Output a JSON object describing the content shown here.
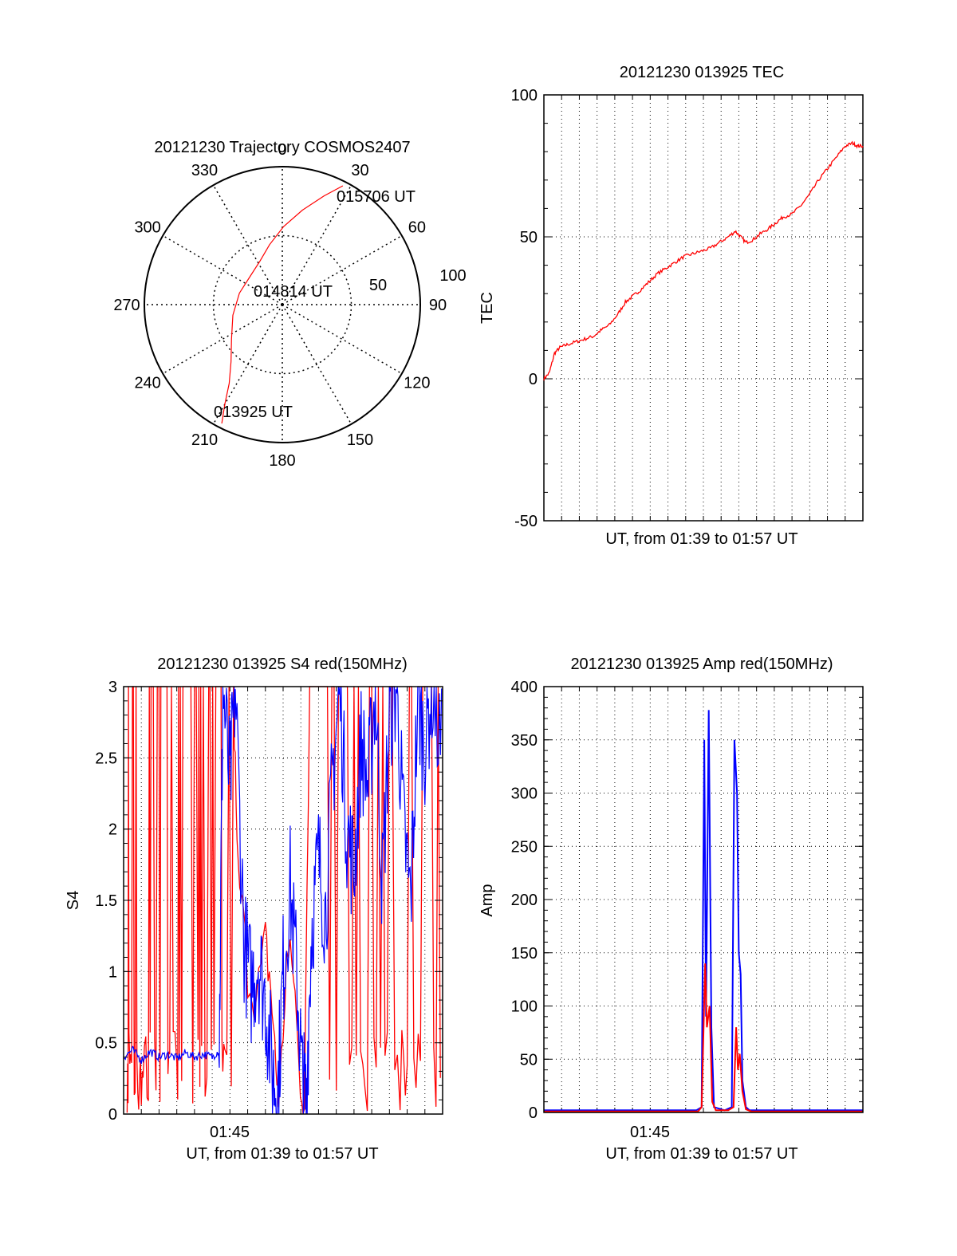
{
  "colors": {
    "red": "#ff0000",
    "blue": "#0000ff",
    "black": "#000000"
  },
  "chart_data": [
    {
      "type": "polar",
      "title": "20121230 Trajectory COSMOS2407",
      "angle_labels": [
        "0",
        "30",
        "60",
        "90",
        "120",
        "150",
        "180",
        "210",
        "240",
        "270",
        "300",
        "330"
      ],
      "radial_labels": [
        "50",
        "100"
      ],
      "track_labels": {
        "end": "015706 UT",
        "mid": "014814 UT",
        "start": "013925 UT"
      },
      "track": [
        {
          "az": 207,
          "el": 3
        },
        {
          "az": 210,
          "el": 15
        },
        {
          "az": 214,
          "el": 28
        },
        {
          "az": 222,
          "el": 40
        },
        {
          "az": 236,
          "el": 50
        },
        {
          "az": 258,
          "el": 57
        },
        {
          "az": 285,
          "el": 61
        },
        {
          "az": 312,
          "el": 62
        },
        {
          "az": 333,
          "el": 58
        },
        {
          "az": 348,
          "el": 50
        },
        {
          "az": 1,
          "el": 39
        },
        {
          "az": 12,
          "el": 27
        },
        {
          "az": 21,
          "el": 14
        },
        {
          "az": 27,
          "el": 3
        }
      ],
      "grid": true
    },
    {
      "type": "line",
      "title": "20121230 013925 TEC",
      "xlabel": "UT, from 01:39 to 01:57 UT",
      "ylabel": "TEC",
      "ylim": [
        -50,
        100
      ],
      "yticks": [
        "100",
        "50",
        "0",
        "-50"
      ],
      "grid": true,
      "series": [
        {
          "color": "red",
          "points": [
            [
              0,
              0
            ],
            [
              0.3,
              2
            ],
            [
              0.6,
              9
            ],
            [
              0.9,
              11
            ],
            [
              1.3,
              12
            ],
            [
              1.8,
              13
            ],
            [
              2.3,
              14
            ],
            [
              2.8,
              15
            ],
            [
              3.2,
              17
            ],
            [
              3.7,
              19
            ],
            [
              4.2,
              23
            ],
            [
              4.6,
              27
            ],
            [
              5.0,
              29
            ],
            [
              5.4,
              31
            ],
            [
              5.9,
              34
            ],
            [
              6.4,
              37
            ],
            [
              6.9,
              39
            ],
            [
              7.4,
              41
            ],
            [
              7.9,
              43
            ],
            [
              8.4,
              44
            ],
            [
              8.9,
              45
            ],
            [
              9.4,
              46
            ],
            [
              9.9,
              48
            ],
            [
              10.4,
              50
            ],
            [
              10.8,
              52
            ],
            [
              11.1,
              50
            ],
            [
              11.4,
              48
            ],
            [
              11.8,
              49
            ],
            [
              12.2,
              51
            ],
            [
              12.7,
              53
            ],
            [
              13.1,
              55
            ],
            [
              13.5,
              57
            ],
            [
              14.0,
              58
            ],
            [
              14.5,
              61
            ],
            [
              15.0,
              65
            ],
            [
              15.5,
              70
            ],
            [
              16.0,
              74
            ],
            [
              16.5,
              78
            ],
            [
              17.0,
              82
            ],
            [
              17.4,
              83
            ],
            [
              17.7,
              82
            ],
            [
              18,
              82
            ]
          ]
        }
      ]
    },
    {
      "type": "line",
      "title": "20121230 013925 S4 red(150MHz)",
      "xlabel": "UT, from 01:39 to 01:57 UT",
      "ylabel": "S4",
      "xtick_label": "01:45",
      "ylim": [
        0,
        3
      ],
      "yticks": [
        "3",
        "2.5",
        "2",
        "1.5",
        "1",
        "0.5",
        "0"
      ],
      "grid": true,
      "series": [
        {
          "color": "red",
          "description_values": "noisy spikes 0–3 throughout; ~1.0 near 01:48",
          "points": [
            [
              0.2,
              3
            ],
            [
              0.3,
              0
            ],
            [
              0.5,
              3
            ],
            [
              0.7,
              0
            ],
            [
              0.9,
              3
            ],
            [
              1.1,
              0
            ],
            [
              1.4,
              3
            ],
            [
              1.6,
              0
            ],
            [
              1.9,
              3
            ],
            [
              2.1,
              0
            ],
            [
              2.4,
              3
            ],
            [
              2.6,
              0
            ],
            [
              3.0,
              3
            ],
            [
              3.2,
              0
            ],
            [
              3.5,
              3
            ],
            [
              3.8,
              0
            ],
            [
              4.2,
              3
            ],
            [
              4.4,
              0
            ],
            [
              4.8,
              3
            ],
            [
              5.1,
              0
            ],
            [
              5.5,
              3
            ],
            [
              5.7,
              0
            ],
            [
              6.2,
              3
            ],
            [
              6.4,
              1.8
            ],
            [
              7.0,
              1.0
            ],
            [
              7.5,
              0.8
            ],
            [
              8.0,
              1.2
            ],
            [
              8.3,
              0.9
            ],
            [
              8.6,
              0.3
            ],
            [
              8.8,
              0.1
            ],
            [
              9.2,
              1.1
            ],
            [
              9.6,
              1.0
            ],
            [
              9.9,
              0.3
            ],
            [
              10.2,
              0.1
            ],
            [
              10.5,
              2.8
            ],
            [
              11.0,
              0
            ],
            [
              11.5,
              3
            ],
            [
              12.0,
              0
            ],
            [
              12.5,
              3
            ],
            [
              13.0,
              0
            ],
            [
              13.5,
              3
            ],
            [
              14.0,
              0
            ],
            [
              14.5,
              3
            ],
            [
              15.0,
              0
            ],
            [
              15.6,
              3
            ],
            [
              16.0,
              0
            ],
            [
              16.5,
              3
            ],
            [
              17.0,
              0
            ],
            [
              17.5,
              3
            ],
            [
              18,
              2.3
            ]
          ]
        },
        {
          "color": "blue",
          "points": [
            [
              0,
              0.4
            ],
            [
              0.5,
              0.45
            ],
            [
              1,
              0.38
            ],
            [
              1.5,
              0.44
            ],
            [
              2,
              0.4
            ],
            [
              2.5,
              0.42
            ],
            [
              3,
              0.39
            ],
            [
              3.5,
              0.43
            ],
            [
              4,
              0.4
            ],
            [
              4.5,
              0.42
            ],
            [
              5,
              0.4
            ],
            [
              5.4,
              0.45
            ],
            [
              5.6,
              3
            ],
            [
              6.0,
              2.3
            ],
            [
              6.3,
              3
            ],
            [
              6.8,
              1.2
            ],
            [
              7.2,
              0.9
            ],
            [
              7.6,
              1.1
            ],
            [
              8.0,
              0.8
            ],
            [
              8.4,
              0.3
            ],
            [
              8.7,
              0.15
            ],
            [
              9.0,
              1.0
            ],
            [
              9.4,
              1.6
            ],
            [
              9.8,
              0.9
            ],
            [
              10.1,
              0.2
            ],
            [
              10.3,
              0.1
            ],
            [
              10.6,
              1.3
            ],
            [
              11.0,
              1.8
            ],
            [
              11.4,
              1.4
            ],
            [
              11.8,
              2.4
            ],
            [
              12.2,
              3
            ],
            [
              12.6,
              2.0
            ],
            [
              13.0,
              1.7
            ],
            [
              13.4,
              2.6
            ],
            [
              13.8,
              2.3
            ],
            [
              14.2,
              3
            ],
            [
              14.6,
              1.6
            ],
            [
              15.0,
              2.8
            ],
            [
              15.4,
              3
            ],
            [
              15.8,
              2.0
            ],
            [
              16.2,
              1.5
            ],
            [
              16.6,
              2.9
            ],
            [
              17.0,
              2.6
            ],
            [
              17.4,
              3
            ],
            [
              18,
              2.5
            ]
          ]
        }
      ]
    },
    {
      "type": "line",
      "title": "20121230 013925 Amp red(150MHz)",
      "xlabel": "UT, from 01:39 to 01:57 UT",
      "ylabel": "Amp",
      "xtick_label": "01:45",
      "ylim": [
        0,
        400
      ],
      "yticks": [
        "400",
        "350",
        "300",
        "250",
        "200",
        "150",
        "100",
        "50",
        "0"
      ],
      "grid": true,
      "series": [
        {
          "color": "blue",
          "points": [
            [
              0,
              2
            ],
            [
              6.5,
              2
            ],
            [
              8.6,
              2
            ],
            [
              8.9,
              5
            ],
            [
              9.05,
              350
            ],
            [
              9.15,
              90
            ],
            [
              9.3,
              378
            ],
            [
              9.45,
              80
            ],
            [
              9.6,
              5
            ],
            [
              10.2,
              2
            ],
            [
              10.6,
              5
            ],
            [
              10.75,
              350
            ],
            [
              10.9,
              300
            ],
            [
              11.0,
              150
            ],
            [
              11.1,
              130
            ],
            [
              11.2,
              30
            ],
            [
              11.4,
              5
            ],
            [
              11.6,
              2
            ],
            [
              18,
              2
            ]
          ]
        },
        {
          "color": "red",
          "points": [
            [
              0,
              1
            ],
            [
              8.7,
              1
            ],
            [
              8.9,
              5
            ],
            [
              9.1,
              140
            ],
            [
              9.2,
              80
            ],
            [
              9.35,
              100
            ],
            [
              9.5,
              10
            ],
            [
              9.7,
              2
            ],
            [
              10.4,
              2
            ],
            [
              10.7,
              5
            ],
            [
              10.85,
              80
            ],
            [
              10.95,
              40
            ],
            [
              11.05,
              55
            ],
            [
              11.2,
              20
            ],
            [
              11.4,
              3
            ],
            [
              11.7,
              1
            ],
            [
              18,
              1
            ]
          ]
        }
      ]
    }
  ]
}
